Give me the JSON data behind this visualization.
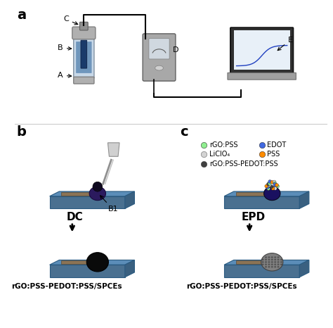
{
  "panel_a_label": "a",
  "panel_b_label": "b",
  "panel_c_label": "c",
  "label_A": "A",
  "label_B": "B",
  "label_C": "C",
  "label_D": "D",
  "label_E": "E",
  "label_B1": "B1",
  "label_DC": "DC",
  "label_EPD": "EPD",
  "label_bottom_left": "rGO:PSS-PEDOT:PSS/SPCEs",
  "label_bottom_right": "rGO:PSS-PEDOT:PSS/SPCEs",
  "legend_items": [
    {
      "label": "rGO:PSS",
      "color": "#90ee90"
    },
    {
      "label": "EDOT",
      "color": "#4169e1"
    },
    {
      "label": "LiClO₄",
      "color": "#d3d3d3"
    },
    {
      "label": "PSS",
      "color": "#ff8c00"
    },
    {
      "label": "rGO:PSS-PEDOT:PSS",
      "color": "#404040"
    }
  ],
  "bg_color": "#ffffff",
  "blue_surface": "#5b8db8",
  "dark_surface": "#3a6080",
  "gray_electrode": "#8b7355",
  "black_film": "#1a1a1a",
  "dark_blue_drop": "#2b1a5e",
  "device_gray": "#a0a0a0",
  "device_dark": "#606060"
}
